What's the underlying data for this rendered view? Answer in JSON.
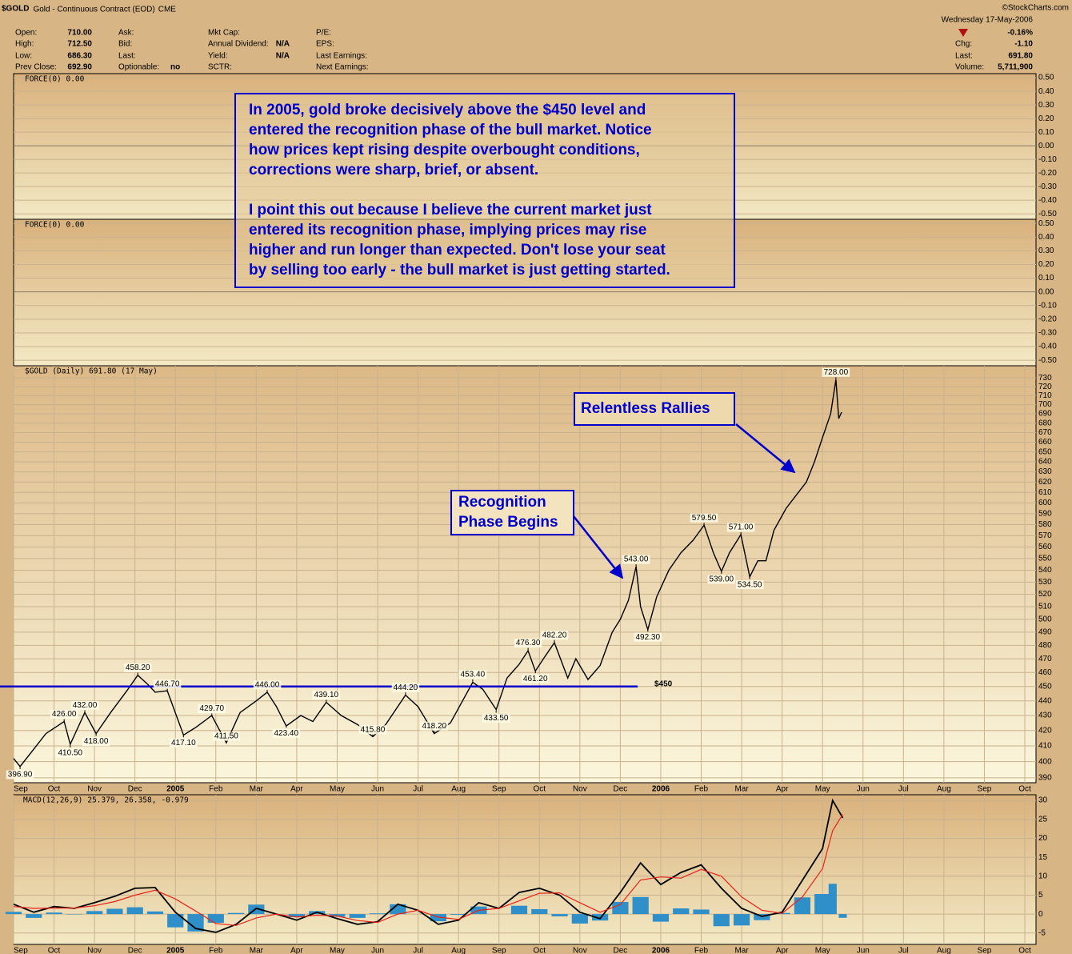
{
  "header": {
    "symbol": "$GOLD",
    "name": "Gold - Continuous Contract (EOD)",
    "exchange": "CME",
    "source": "©StockCharts.com",
    "columns": [
      [
        {
          "label": "Open:",
          "value": "710.00"
        },
        {
          "label": "High:",
          "value": "712.50"
        },
        {
          "label": "Low:",
          "value": "686.30"
        },
        {
          "label": "Prev Close:",
          "value": "692.90"
        }
      ],
      [
        {
          "label": "Ask:"
        },
        {
          "label": "Bid:"
        },
        {
          "label": "Last:"
        },
        {
          "label": "Optionable:",
          "value": "no"
        }
      ],
      [
        {
          "label": "Mkt Cap:"
        },
        {
          "label": "Annual Dividend:",
          "value": "N/A"
        },
        {
          "label": "Yield:",
          "value": "N/A"
        },
        {
          "label": "SCTR:"
        }
      ],
      [
        {
          "label": "P/E:"
        },
        {
          "label": "EPS:"
        },
        {
          "label": "Last Earnings:"
        },
        {
          "label": "Next Earnings:"
        }
      ]
    ],
    "date": "Wednesday  17-May-2006",
    "change_pct": "-0.16%",
    "right": [
      {
        "label": "Chg:",
        "value": "-1.10"
      },
      {
        "label": "Last:",
        "value": "691.80"
      },
      {
        "label": "Volume:",
        "value": "5,711,900"
      }
    ]
  },
  "annotations": {
    "note": [
      [
        "In 2005, gold broke decisively above the $450 level and",
        "entered the recognition phase of the bull market. Notice",
        "how prices kept rising despite overbought conditions,",
        "corrections were sharp, brief, or absent."
      ],
      [
        "I point this out because I believe the current market just",
        "entered its recognition phase, implying prices may rise",
        "higher and run longer than expected. Don't lose your seat",
        "by selling too early - the bull market is just getting started."
      ]
    ],
    "rallies": "Relentless Rallies",
    "recognition": [
      "Recognition",
      "Phase Begins"
    ]
  },
  "chart_data": [
    {
      "type": "line",
      "title": "FORCE(0) 0.00",
      "ylim": [
        -0.54,
        0.53
      ],
      "yticks": [
        {
          "value": 0.5,
          "label": "0.50"
        },
        {
          "value": 0.4,
          "label": "0.40"
        },
        {
          "value": 0.3,
          "label": "0.30"
        },
        {
          "value": 0.2,
          "label": "0.20"
        },
        {
          "value": 0.1,
          "label": "0.10"
        },
        {
          "value": 0,
          "label": "0.00"
        },
        {
          "value": -0.1,
          "label": "-0.10"
        },
        {
          "value": -0.2,
          "label": "-0.20"
        },
        {
          "value": -0.3,
          "label": "-0.30"
        },
        {
          "value": -0.4,
          "label": "-0.40"
        },
        {
          "value": -0.5,
          "label": "-0.50"
        }
      ]
    },
    {
      "type": "line",
      "title": "FORCE(0) 0.00",
      "ylim": [
        -0.54,
        0.53
      ],
      "yticks": [
        {
          "value": 0.5,
          "label": "0.50"
        },
        {
          "value": 0.4,
          "label": "0.40"
        },
        {
          "value": 0.3,
          "label": "0.30"
        },
        {
          "value": 0.2,
          "label": "0.20"
        },
        {
          "value": 0.1,
          "label": "0.10"
        },
        {
          "value": 0,
          "label": "0.00"
        },
        {
          "value": -0.1,
          "label": "-0.10"
        },
        {
          "value": -0.2,
          "label": "-0.20"
        },
        {
          "value": -0.3,
          "label": "-0.30"
        },
        {
          "value": -0.4,
          "label": "-0.40"
        },
        {
          "value": -0.5,
          "label": "-0.50"
        }
      ]
    },
    {
      "type": "line",
      "title": "$GOLD (Daily) 691.80 (17 May)",
      "log": true,
      "xlim": [
        0,
        25
      ],
      "ylim": [
        387,
        744
      ],
      "xticks": [
        {
          "value": 0,
          "label": "Sep"
        },
        {
          "value": 1,
          "label": "Oct"
        },
        {
          "value": 2,
          "label": "Nov"
        },
        {
          "value": 3,
          "label": "Dec"
        },
        {
          "value": 4,
          "label": "2005"
        },
        {
          "value": 5,
          "label": "Feb"
        },
        {
          "value": 6,
          "label": "Mar"
        },
        {
          "value": 7,
          "label": "Apr"
        },
        {
          "value": 8,
          "label": "May"
        },
        {
          "value": 9,
          "label": "Jun"
        },
        {
          "value": 10,
          "label": "Jul"
        },
        {
          "value": 11,
          "label": "Aug"
        },
        {
          "value": 12,
          "label": "Sep"
        },
        {
          "value": 13,
          "label": "Oct"
        },
        {
          "value": 14,
          "label": "Nov"
        },
        {
          "value": 15,
          "label": "Dec"
        },
        {
          "value": 16,
          "label": "2006"
        },
        {
          "value": 17,
          "label": "Feb"
        },
        {
          "value": 18,
          "label": "Mar"
        },
        {
          "value": 19,
          "label": "Apr"
        },
        {
          "value": 20,
          "label": "May"
        },
        {
          "value": 21,
          "label": "Jun"
        },
        {
          "value": 22,
          "label": "Jul"
        },
        {
          "value": 23,
          "label": "Aug"
        },
        {
          "value": 24,
          "label": "Sep"
        },
        {
          "value": 25,
          "label": "Oct"
        }
      ],
      "yticks": [
        390,
        400,
        410,
        420,
        430,
        440,
        450,
        460,
        470,
        480,
        490,
        500,
        510,
        520,
        530,
        540,
        550,
        560,
        570,
        580,
        590,
        600,
        610,
        620,
        630,
        640,
        650,
        660,
        670,
        680,
        690,
        700,
        710,
        720,
        730
      ],
      "series": [
        {
          "color": "#000000",
          "x": [
            0,
            0.16,
            0.5,
            0.8,
            1.25,
            1.4,
            1.76,
            2.04,
            2.4,
            2.8,
            3.07,
            3.3,
            3.5,
            3.8,
            4.2,
            4.5,
            4.9,
            5.26,
            5.6,
            6.0,
            6.27,
            6.5,
            6.74,
            7.1,
            7.4,
            7.73,
            8.1,
            8.5,
            8.88,
            9.2,
            9.69,
            10.0,
            10.4,
            10.8,
            11.1,
            11.35,
            11.6,
            11.93,
            12.2,
            12.5,
            12.72,
            12.9,
            13.1,
            13.37,
            13.7,
            13.9,
            14.2,
            14.5,
            14.8,
            15.0,
            15.2,
            15.39,
            15.5,
            15.68,
            15.9,
            16.2,
            16.5,
            16.8,
            17.07,
            17.3,
            17.5,
            17.7,
            17.98,
            18.2,
            18.4,
            18.6,
            18.8,
            19.1,
            19.3,
            19.6,
            19.8,
            20.0,
            20.2,
            20.33,
            20.4,
            20.47
          ],
          "values": [
            402,
            397,
            408,
            418,
            426,
            411,
            432,
            418,
            432,
            447,
            458,
            452,
            446,
            447,
            417,
            422,
            430,
            412,
            432,
            440,
            446,
            436,
            423,
            430,
            426,
            439,
            430,
            424,
            416,
            424,
            444,
            436,
            418,
            425,
            440,
            453,
            448,
            434,
            456,
            466,
            476,
            461,
            470,
            482,
            456,
            470,
            455,
            465,
            490,
            500,
            515,
            543,
            510,
            492,
            518,
            540,
            555,
            566,
            579.5,
            555,
            539,
            555,
            571,
            534.5,
            548,
            548,
            575,
            595,
            605,
            620,
            640,
            665,
            690,
            728,
            685,
            691.8
          ]
        }
      ],
      "price_labels": [
        {
          "x": 0.16,
          "value": 396.9,
          "label": "396.90"
        },
        {
          "x": 1.25,
          "value": 426,
          "label": "426.00"
        },
        {
          "x": 1.4,
          "value": 410.5,
          "label": "410.50"
        },
        {
          "x": 1.76,
          "value": 432,
          "label": "432.00"
        },
        {
          "x": 2.04,
          "value": 418,
          "label": "418.00"
        },
        {
          "x": 3.07,
          "value": 458.2,
          "label": "458.20"
        },
        {
          "x": 3.8,
          "value": 446.7,
          "label": "446.70"
        },
        {
          "x": 4.2,
          "value": 417.1,
          "label": "417.10"
        },
        {
          "x": 4.9,
          "value": 429.7,
          "label": "429.70"
        },
        {
          "x": 5.26,
          "value": 411.5,
          "label": "411.50"
        },
        {
          "x": 6.27,
          "value": 446,
          "label": "446.00"
        },
        {
          "x": 6.74,
          "value": 423.4,
          "label": "423.40"
        },
        {
          "x": 7.73,
          "value": 439.1,
          "label": "439.10"
        },
        {
          "x": 8.88,
          "value": 415.8,
          "label": "415.80"
        },
        {
          "x": 9.69,
          "value": 444.2,
          "label": "444.20"
        },
        {
          "x": 10.4,
          "value": 418.2,
          "label": "418.20"
        },
        {
          "x": 11.35,
          "value": 453.4,
          "label": "453.40"
        },
        {
          "x": 11.93,
          "value": 433.5,
          "label": "433.50"
        },
        {
          "x": 12.72,
          "value": 476.3,
          "label": "476.30"
        },
        {
          "x": 12.9,
          "value": 461.2,
          "label": "461.20"
        },
        {
          "x": 13.37,
          "value": 482.2,
          "label": "482.20"
        },
        {
          "x": 15.39,
          "value": 543,
          "label": "543.00"
        },
        {
          "x": 15.68,
          "value": 492.3,
          "label": "492.30"
        },
        {
          "x": 17.07,
          "value": 579.5,
          "label": "579.50"
        },
        {
          "x": 17.5,
          "value": 539,
          "label": "539.00"
        },
        {
          "x": 17.98,
          "value": 571,
          "label": "571.00"
        },
        {
          "x": 18.2,
          "value": 534.5,
          "label": "534.50"
        },
        {
          "x": 20.33,
          "value": 728,
          "label": "728.00"
        }
      ],
      "level": {
        "value": 450,
        "label": "$450",
        "color": "#0000cc"
      }
    },
    {
      "type": "macd",
      "legend": [
        "MACD(12,26,9)",
        "25.379,",
        "26.358,",
        "-0.979"
      ],
      "xlim": [
        0,
        25
      ],
      "ylim": [
        -8,
        31.5
      ],
      "xticks": [
        {
          "value": 0,
          "label": "Sep"
        },
        {
          "value": 1,
          "label": "Oct"
        },
        {
          "value": 2,
          "label": "Nov"
        },
        {
          "value": 3,
          "label": "Dec"
        },
        {
          "value": 4,
          "label": "2005"
        },
        {
          "value": 5,
          "label": "Feb"
        },
        {
          "value": 6,
          "label": "Mar"
        },
        {
          "value": 7,
          "label": "Apr"
        },
        {
          "value": 8,
          "label": "May"
        },
        {
          "value": 9,
          "label": "Jun"
        },
        {
          "value": 10,
          "label": "Jul"
        },
        {
          "value": 11,
          "label": "Aug"
        },
        {
          "value": 12,
          "label": "Sep"
        },
        {
          "value": 13,
          "label": "Oct"
        },
        {
          "value": 14,
          "label": "Nov"
        },
        {
          "value": 15,
          "label": "Dec"
        },
        {
          "value": 16,
          "label": "2006"
        },
        {
          "value": 17,
          "label": "Feb"
        },
        {
          "value": 18,
          "label": "Mar"
        },
        {
          "value": 19,
          "label": "Apr"
        },
        {
          "value": 20,
          "label": "May"
        },
        {
          "value": 21,
          "label": "Jun"
        },
        {
          "value": 22,
          "label": "Jul"
        },
        {
          "value": 23,
          "label": "Aug"
        },
        {
          "value": 24,
          "label": "Sep"
        },
        {
          "value": 25,
          "label": "Oct"
        }
      ],
      "yticks": [
        30,
        25,
        20,
        15,
        10,
        5,
        0,
        -5
      ],
      "x": [
        0,
        0.5,
        1,
        1.5,
        2,
        2.5,
        3,
        3.5,
        4,
        4.5,
        5,
        5.5,
        6,
        6.5,
        7,
        7.5,
        8,
        8.5,
        9,
        9.5,
        10,
        10.5,
        11,
        11.5,
        12,
        12.5,
        13,
        13.5,
        14,
        14.5,
        15,
        15.5,
        16,
        16.5,
        17,
        17.5,
        18,
        18.5,
        19,
        19.5,
        20,
        20.25,
        20.5
      ],
      "series": [
        {
          "color": "#000000",
          "values": [
            2.6,
            0.5,
            2,
            1.5,
            3,
            4.7,
            6.8,
            7,
            0.5,
            -3.8,
            -4.8,
            -2.7,
            1.5,
            0,
            -1.6,
            0.5,
            -1.2,
            -2.7,
            -2,
            2.6,
            1,
            -2.7,
            -1.6,
            3,
            1.5,
            5.7,
            6.8,
            5,
            0.5,
            -1.2,
            5.7,
            13.5,
            7.8,
            11,
            13,
            6.8,
            1.5,
            -0.6,
            0.5,
            8.9,
            17.3,
            30,
            25.379
          ]
        },
        {
          "color": "#e8231a",
          "values": [
            2,
            1.5,
            1.6,
            1.6,
            2.2,
            3.3,
            5,
            6.3,
            4,
            0.8,
            -2.5,
            -3,
            -1,
            0,
            -0.8,
            -0.3,
            -0.5,
            -1.7,
            -2.2,
            0,
            1,
            -0.8,
            -1.4,
            1,
            1.5,
            3.5,
            5.5,
            5.6,
            3,
            0.5,
            2.5,
            9,
            9.8,
            9.5,
            11.8,
            10,
            4.5,
            1,
            0.2,
            4.5,
            12,
            22,
            26.358
          ]
        },
        {
          "color": "#2f8fc9",
          "kind": "histogram",
          "values": [
            0.6,
            -1,
            0.4,
            -0.1,
            0.8,
            1.4,
            1.8,
            0.7,
            -3.5,
            -4.6,
            -2.3,
            0.3,
            2.5,
            0,
            -0.8,
            0.8,
            -0.7,
            -1,
            0.2,
            2.6,
            0,
            -1.9,
            -0.2,
            2,
            0,
            2.2,
            1.3,
            -0.6,
            -2.5,
            -1.7,
            3.2,
            4.5,
            -2,
            1.5,
            1.2,
            -3.2,
            -3,
            -1.6,
            0.3,
            4.4,
            5.3,
            8,
            -0.979
          ]
        }
      ]
    }
  ]
}
